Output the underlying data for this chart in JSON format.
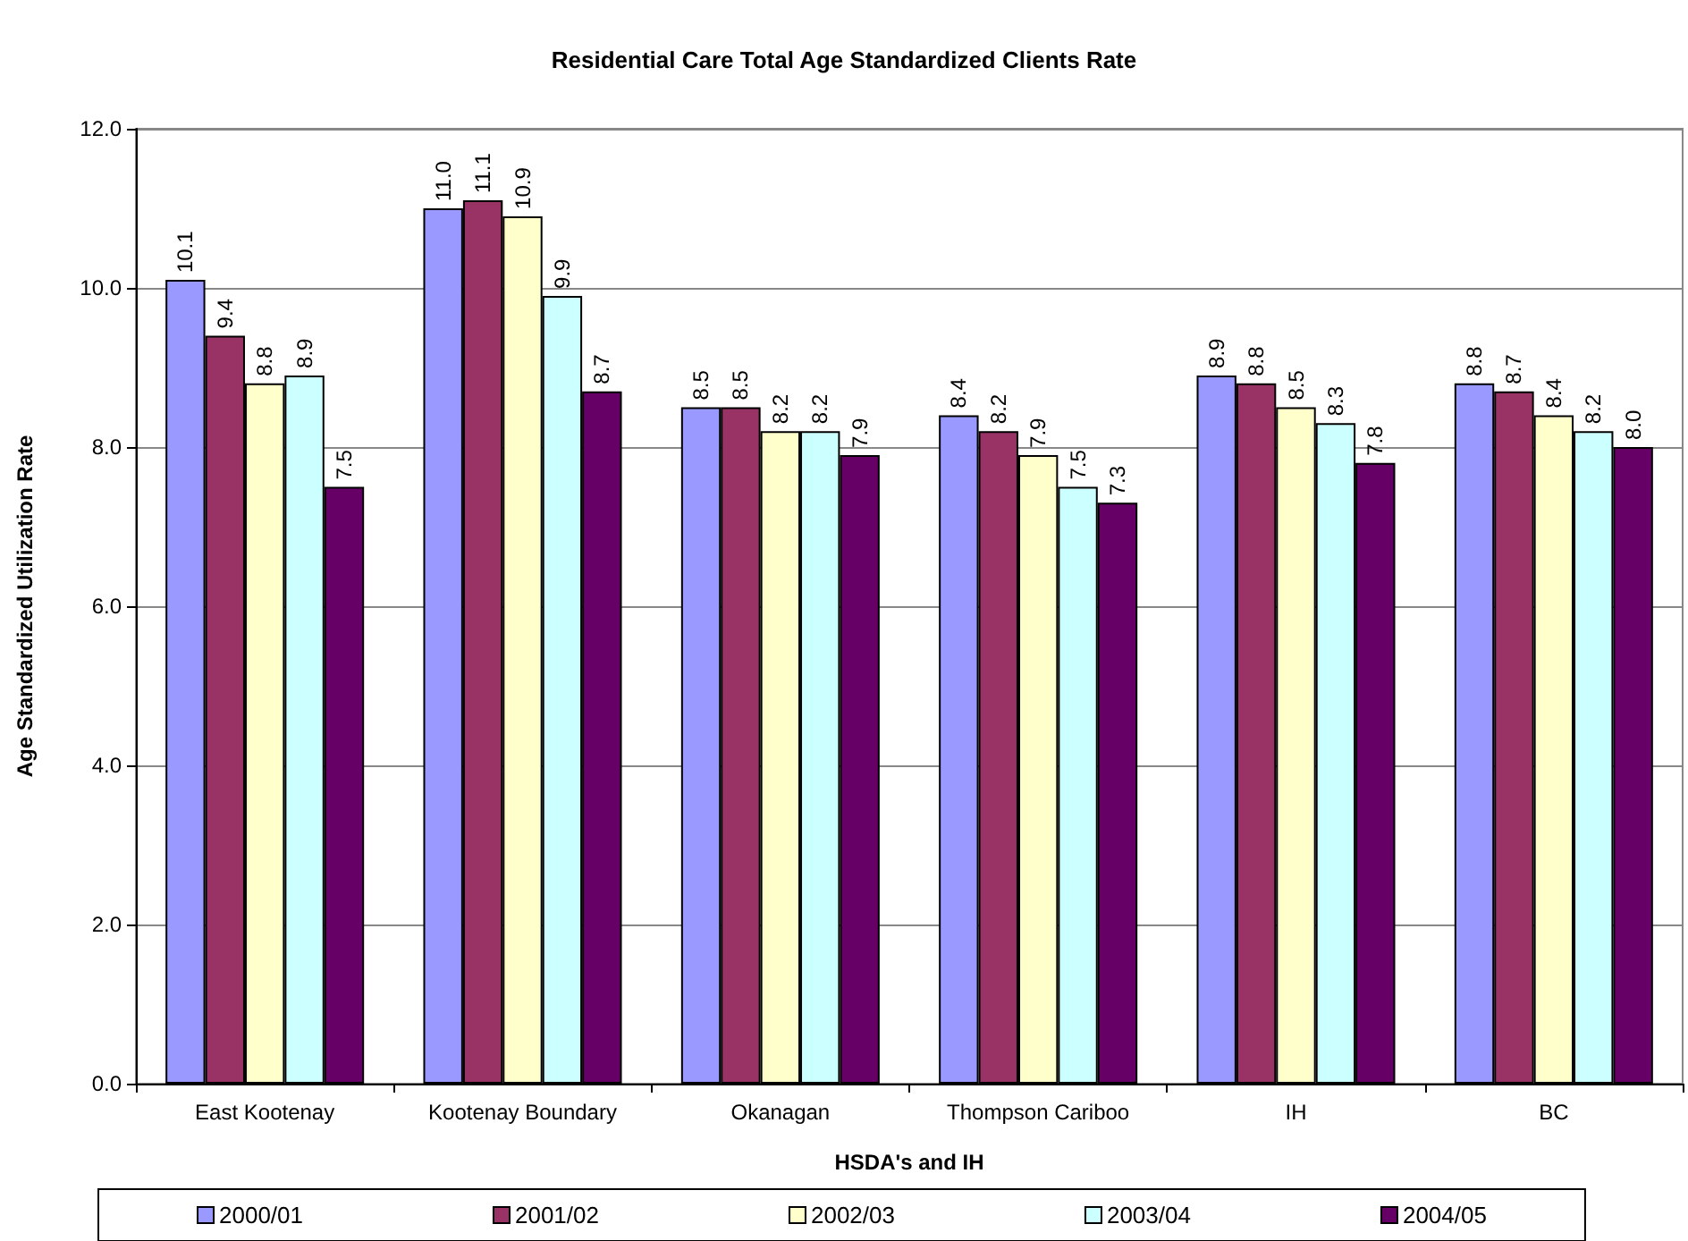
{
  "chart_data": {
    "type": "bar",
    "title": "Residential Care Total Age Standardized Clients Rate",
    "xlabel": "HSDA's and IH",
    "ylabel": "Age Standardized Utilization Rate",
    "categories": [
      "East Kootenay",
      "Kootenay Boundary",
      "Okanagan",
      "Thompson Cariboo",
      "IH",
      "BC"
    ],
    "series": [
      {
        "name": "2000/01",
        "color": "#9999ff",
        "values": [
          10.1,
          11.0,
          8.5,
          8.4,
          8.9,
          8.8
        ],
        "value_labels": [
          "10.1",
          "11.0",
          "8.5",
          "8.4",
          "8.9",
          "8.8"
        ]
      },
      {
        "name": "2001/02",
        "color": "#993366",
        "values": [
          9.4,
          11.1,
          8.5,
          8.2,
          8.8,
          8.7
        ],
        "value_labels": [
          "9.4",
          "11.1",
          "8.5",
          "8.2",
          "8.8",
          "8.7"
        ]
      },
      {
        "name": "2002/03",
        "color": "#ffffcc",
        "values": [
          8.8,
          10.9,
          8.2,
          7.9,
          8.5,
          8.4
        ],
        "value_labels": [
          "8.8",
          "10.9",
          "8.2",
          "7.9",
          "8.5",
          "8.4"
        ]
      },
      {
        "name": "2003/04",
        "color": "#ccffff",
        "values": [
          8.9,
          9.9,
          8.2,
          7.5,
          8.3,
          8.2
        ],
        "value_labels": [
          "8.9",
          "9.9",
          "8.2",
          "7.5",
          "8.3",
          "8.2"
        ]
      },
      {
        "name": "2004/05",
        "color": "#660066",
        "values": [
          7.5,
          8.7,
          7.9,
          7.3,
          7.8,
          8.0
        ],
        "value_labels": [
          "7.5",
          "8.7",
          "7.9",
          "7.3",
          "7.8",
          "8.0"
        ]
      }
    ],
    "ylim": [
      0,
      12
    ],
    "yticks": [
      {
        "value": 0,
        "label": "0.0"
      },
      {
        "value": 2,
        "label": "2.0"
      },
      {
        "value": 4,
        "label": "4.0"
      },
      {
        "value": 6,
        "label": "6.0"
      },
      {
        "value": 8,
        "label": "8.0"
      },
      {
        "value": 10,
        "label": "10.0"
      },
      {
        "value": 12,
        "label": "12.0"
      }
    ],
    "grid": "y",
    "legend": "bottom"
  }
}
